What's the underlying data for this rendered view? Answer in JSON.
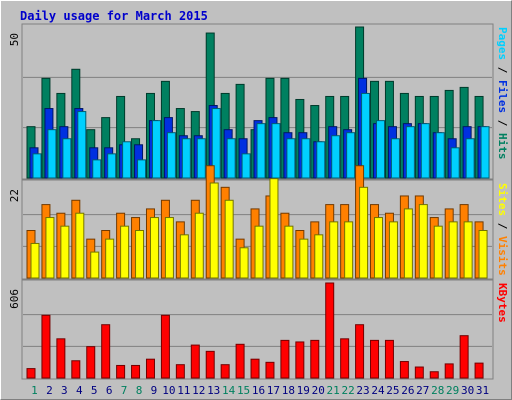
{
  "chart_data": {
    "type": "bar",
    "title": "Daily usage for March 2015",
    "categories": [
      "1",
      "2",
      "3",
      "4",
      "5",
      "6",
      "7",
      "8",
      "9",
      "10",
      "11",
      "12",
      "13",
      "14",
      "15",
      "16",
      "17",
      "18",
      "19",
      "20",
      "21",
      "22",
      "23",
      "24",
      "25",
      "26",
      "27",
      "28",
      "29",
      "30",
      "31"
    ],
    "weekend_days": [
      "1",
      "7",
      "8",
      "14",
      "15",
      "21",
      "22",
      "28",
      "29"
    ],
    "panels": [
      {
        "id": "hits",
        "ymax": 50,
        "ymax_label": "50",
        "axis_label_parts": [
          "Pages",
          " / ",
          "Files",
          " / ",
          "Hits"
        ],
        "series": [
          {
            "name": "Hits",
            "color": "#008060",
            "values": [
              17,
              33,
              28,
              36,
              16,
              20,
              27,
              13,
              28,
              32,
              23,
              22,
              48,
              28,
              31,
              16,
              33,
              33,
              26,
              24,
              27,
              27,
              50,
              32,
              32,
              28,
              27,
              27,
              29,
              30,
              27
            ]
          },
          {
            "name": "Files",
            "color": "#0030e0",
            "values": [
              10,
              23,
              17,
              23,
              10,
              10,
              11,
              11,
              19,
              20,
              14,
              14,
              24,
              16,
              13,
              19,
              20,
              15,
              15,
              12,
              17,
              16,
              33,
              18,
              17,
              18,
              18,
              15,
              13,
              17,
              17
            ]
          },
          {
            "name": "Pages",
            "color": "#00d0ff",
            "values": [
              8,
              16,
              13,
              22,
              6,
              8,
              12,
              6,
              19,
              15,
              13,
              13,
              23,
              13,
              8,
              18,
              18,
              13,
              13,
              12,
              14,
              15,
              28,
              19,
              13,
              17,
              18,
              15,
              10,
              13,
              17
            ]
          }
        ]
      },
      {
        "id": "visits",
        "ymax": 22,
        "ymax_label": "22",
        "axis_label_parts": [
          "Sites",
          " / ",
          "Visits"
        ],
        "series": [
          {
            "name": "Visits",
            "color": "#ff8000",
            "values": [
              11,
              17,
              15,
              18,
              9,
              11,
              15,
              14,
              16,
              18,
              13,
              18,
              26,
              21,
              9,
              16,
              19,
              15,
              11,
              13,
              17,
              17,
              26,
              17,
              15,
              19,
              19,
              14,
              16,
              17,
              13
            ]
          },
          {
            "name": "Sites",
            "color": "#ffff00",
            "values": [
              8,
              14,
              12,
              15,
              6,
              9,
              12,
              11,
              14,
              14,
              10,
              15,
              22,
              18,
              7,
              12,
              23,
              12,
              9,
              10,
              13,
              13,
              21,
              14,
              13,
              16,
              17,
              12,
              13,
              13,
              11
            ]
          }
        ]
      },
      {
        "id": "kbytes",
        "ymax": 606,
        "ymax_label": "606",
        "axis_label_parts": [
          "KBytes"
        ],
        "series": [
          {
            "name": "KBytes",
            "color": "#ff0000",
            "values": [
              60,
              400,
              250,
              110,
              200,
              340,
              80,
              80,
              120,
              400,
              85,
              210,
              170,
              85,
              215,
              120,
              100,
              240,
              230,
              240,
              606,
              250,
              340,
              240,
              240,
              105,
              70,
              40,
              90,
              270,
              95
            ]
          }
        ]
      }
    ]
  }
}
